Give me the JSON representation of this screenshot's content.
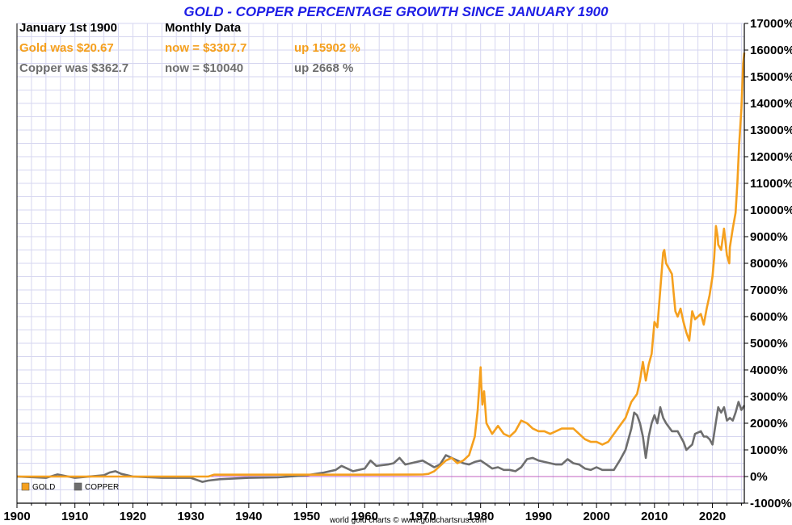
{
  "chart_data": {
    "type": "line",
    "title": "GOLD - COPPER PERCENTAGE GROWTH SINCE JANUARY 1900",
    "xlim": [
      1900,
      2025.5
    ],
    "ylim": [
      -1000,
      17000
    ],
    "x_ticks": [
      "1900",
      "1910",
      "1920",
      "1930",
      "1940",
      "1950",
      "1960",
      "1970",
      "1980",
      "1990",
      "2000",
      "2010",
      "2020"
    ],
    "y_ticks": [
      "17000%",
      "16000%",
      "15000%",
      "14000%",
      "13000%",
      "12000%",
      "11000%",
      "10000%",
      "9000%",
      "8000%",
      "7000%",
      "6000%",
      "5000%",
      "4000%",
      "3000%",
      "2000%",
      "1000%",
      "0%",
      "-1000%"
    ],
    "grid": true,
    "info": {
      "col1_header": "January 1st 1900",
      "col2_header": "Monthly Data",
      "gold_was": "Gold was $20.67",
      "gold_now": "now = $3307.7",
      "gold_up": "up 15902 %",
      "copper_was": "Copper was $362.7",
      "copper_now": "now = $10040",
      "copper_up": "up 2668 %"
    },
    "legend": {
      "position": "bottom-left",
      "gold": "GOLD",
      "copper": "COPPER"
    },
    "credit": "world gold charts © www.goldchartsrus.com",
    "colors": {
      "gold": "#f5a01e",
      "copper": "#6e6e6e",
      "zero_line": "#c060c0",
      "grid": "#d6d6f0",
      "title": "#1e1ee6"
    },
    "series": [
      {
        "name": "GOLD",
        "x": [
          1900,
          1920,
          1933,
          1934,
          1950,
          1960,
          1970,
          1971,
          1972,
          1973,
          1974,
          1975,
          1976,
          1977,
          1978,
          1979,
          1979.5,
          1980.0,
          1980.1,
          1980.3,
          1980.6,
          1981,
          1982,
          1983,
          1984,
          1985,
          1986,
          1987,
          1988,
          1989,
          1990,
          1991,
          1992,
          1993,
          1994,
          1995,
          1996,
          1997,
          1998,
          1999,
          2000,
          2001,
          2002,
          2003,
          2004,
          2005,
          2006,
          2007,
          2007.5,
          2008,
          2008.5,
          2009,
          2009.5,
          2010,
          2010.5,
          2011,
          2011.5,
          2011.7,
          2012,
          2012.5,
          2013,
          2013.3,
          2013.6,
          2014,
          2014.5,
          2015,
          2015.5,
          2016,
          2016.5,
          2017,
          2017.5,
          2018,
          2018.5,
          2019,
          2019.5,
          2020,
          2020.3,
          2020.6,
          2020.9,
          2021,
          2021.5,
          2022,
          2022.5,
          2022.9,
          2023,
          2023.5,
          2024,
          2024.3,
          2024.6,
          2025,
          2025.3,
          2025.5
        ],
        "y": [
          0,
          0,
          0,
          70,
          70,
          70,
          75,
          100,
          200,
          400,
          600,
          700,
          500,
          600,
          800,
          1500,
          2500,
          4100,
          3500,
          2700,
          3200,
          2000,
          1600,
          1900,
          1600,
          1500,
          1700,
          2100,
          2000,
          1800,
          1700,
          1700,
          1600,
          1700,
          1800,
          1800,
          1800,
          1600,
          1400,
          1300,
          1300,
          1200,
          1300,
          1600,
          1900,
          2200,
          2800,
          3100,
          3600,
          4300,
          3600,
          4200,
          4600,
          5800,
          5600,
          7000,
          8400,
          8500,
          8000,
          7800,
          7600,
          6900,
          6200,
          6000,
          6300,
          5800,
          5400,
          5100,
          6200,
          5900,
          6000,
          6100,
          5700,
          6300,
          6800,
          7500,
          8200,
          9400,
          9000,
          8700,
          8500,
          9300,
          8300,
          8000,
          8600,
          9300,
          9900,
          11000,
          12400,
          13800,
          15500,
          15902
        ]
      },
      {
        "name": "COPPER",
        "x": [
          1900,
          1905,
          1907,
          1910,
          1915,
          1916,
          1917,
          1918,
          1920,
          1925,
          1930,
          1932,
          1933,
          1935,
          1940,
          1945,
          1950,
          1953,
          1955,
          1956,
          1958,
          1960,
          1961,
          1962,
          1964,
          1965,
          1966,
          1967,
          1968,
          1970,
          1972,
          1973,
          1974,
          1975,
          1976,
          1977,
          1978,
          1979,
          1980,
          1981,
          1982,
          1983,
          1984,
          1985,
          1986,
          1987,
          1988,
          1989,
          1990,
          1991,
          1992,
          1993,
          1994,
          1995,
          1996,
          1997,
          1998,
          1999,
          2000,
          2001,
          2002,
          2003,
          2004,
          2005,
          2006,
          2006.5,
          2007,
          2007.5,
          2008,
          2008.5,
          2009,
          2009.5,
          2010,
          2010.5,
          2011,
          2011.5,
          2012,
          2013,
          2014,
          2015,
          2015.5,
          2016,
          2016.5,
          2017,
          2018,
          2018.5,
          2019,
          2019.5,
          2020,
          2020.5,
          2021,
          2021.5,
          2022,
          2022.5,
          2023,
          2023.5,
          2024,
          2024.5,
          2025,
          2025.5
        ],
        "y": [
          0,
          -50,
          80,
          -50,
          50,
          150,
          200,
          100,
          0,
          -50,
          -50,
          -200,
          -150,
          -100,
          -50,
          -30,
          50,
          150,
          250,
          400,
          200,
          300,
          600,
          400,
          450,
          500,
          700,
          450,
          500,
          600,
          350,
          450,
          800,
          700,
          600,
          500,
          450,
          550,
          600,
          450,
          300,
          350,
          250,
          250,
          200,
          350,
          650,
          700,
          600,
          550,
          500,
          450,
          450,
          650,
          500,
          450,
          300,
          250,
          350,
          250,
          250,
          250,
          600,
          1000,
          1800,
          2400,
          2300,
          2000,
          1500,
          700,
          1500,
          2000,
          2300,
          2000,
          2600,
          2200,
          2000,
          1700,
          1700,
          1300,
          1000,
          1100,
          1200,
          1600,
          1700,
          1500,
          1500,
          1400,
          1200,
          1900,
          2600,
          2400,
          2600,
          2100,
          2200,
          2100,
          2400,
          2800,
          2500,
          2668
        ]
      }
    ]
  }
}
